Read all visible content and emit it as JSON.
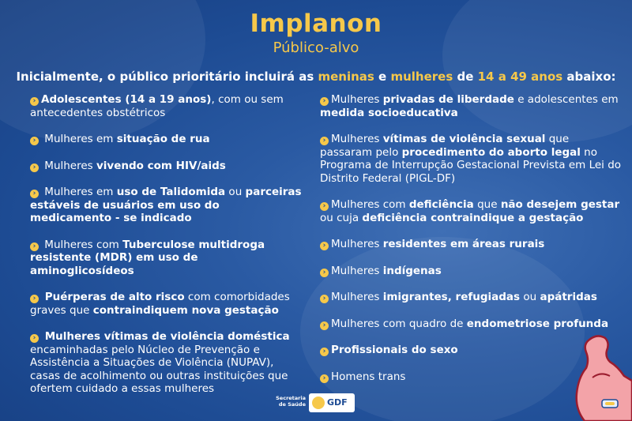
{
  "title": "Implanon",
  "subtitle": "Público-alvo",
  "intro": {
    "part1": "Inicialmente, o público prioritário incluirá as ",
    "hl1": "meninas",
    "part2": " e ",
    "hl2": "mulheres",
    "part3": " de ",
    "hl3": "14 a 49 anos",
    "part4": " abaixo:"
  },
  "left": {
    "i1": {
      "b1": "Adolescentes (14 a 19 anos)",
      "t1": ", com ou sem antecedentes obstétricos"
    },
    "i2": {
      "t1": " Mulheres em ",
      "b1": "situação de rua"
    },
    "i3": {
      "t1": " Mulheres ",
      "b1": "vivendo com HIV/aids"
    },
    "i4": {
      "t1": " Mulheres em ",
      "b1": "uso de Talidomida",
      "t2": " ou ",
      "b2": "parceiras estáveis de usuários em uso do medicamento - se indicado"
    },
    "i5": {
      "t1": " Mulheres com ",
      "b1": "Tuberculose multidroga resistente (MDR) em uso de aminoglicosídeos"
    },
    "i6": {
      "b1": " Puérperas de alto risco",
      "t1": " com comorbidades graves que ",
      "b2": "contraindiquem nova gestação"
    },
    "i7": {
      "b1": " Mulheres vítimas de violência doméstica",
      "t1": " encaminhadas pelo Núcleo de Prevenção e Assistência a Situações de Violência (NUPAV), casas de acolhimento ou outras instituições que ofertem cuidado a essas mulheres"
    }
  },
  "right": {
    "i1": {
      "t1": "Mulheres ",
      "b1": "privadas de liberdade",
      "t2": " e adolescentes em ",
      "b2": "medida socioeducativa"
    },
    "i2": {
      "t1": "Mulheres ",
      "b1": "vítimas de violência sexual",
      "t2": " que passaram pelo ",
      "b2": "procedimento do aborto legal",
      "t3": " no Programa de Interrupção Gestacional Prevista em Lei do Distrito Federal (PIGL-DF)"
    },
    "i3": {
      "t1": "Mulheres com ",
      "b1": "deficiência",
      "t2": " que ",
      "b2": "não desejem gestar",
      "t3": " ou cuja ",
      "b3": "deficiência contraindique a gestação"
    },
    "i4": {
      "t1": "Mulheres ",
      "b1": "residentes em áreas rurais"
    },
    "i5": {
      "t1": "Mulheres ",
      "b1": "indígenas"
    },
    "i6": {
      "t1": "Mulheres ",
      "b1": "imigrantes, refugiadas",
      "t2": " ou ",
      "b2": "apátridas"
    },
    "i7": {
      "t1": "Mulheres com quadro de ",
      "b1": "endometriose profunda"
    },
    "i8": {
      "b1": "Profissionais do sexo"
    },
    "i9": {
      "t1": "Homens trans"
    }
  },
  "footer": {
    "secretaria": "Secretaria de Saúde",
    "gdf": "GDF"
  },
  "colors": {
    "background": "#1d4b93",
    "accent": "#f6c84a",
    "text": "#ffffff"
  },
  "icons": {
    "bullet": "chevron-right-icon",
    "illustration": "flexed-arm-icon"
  }
}
